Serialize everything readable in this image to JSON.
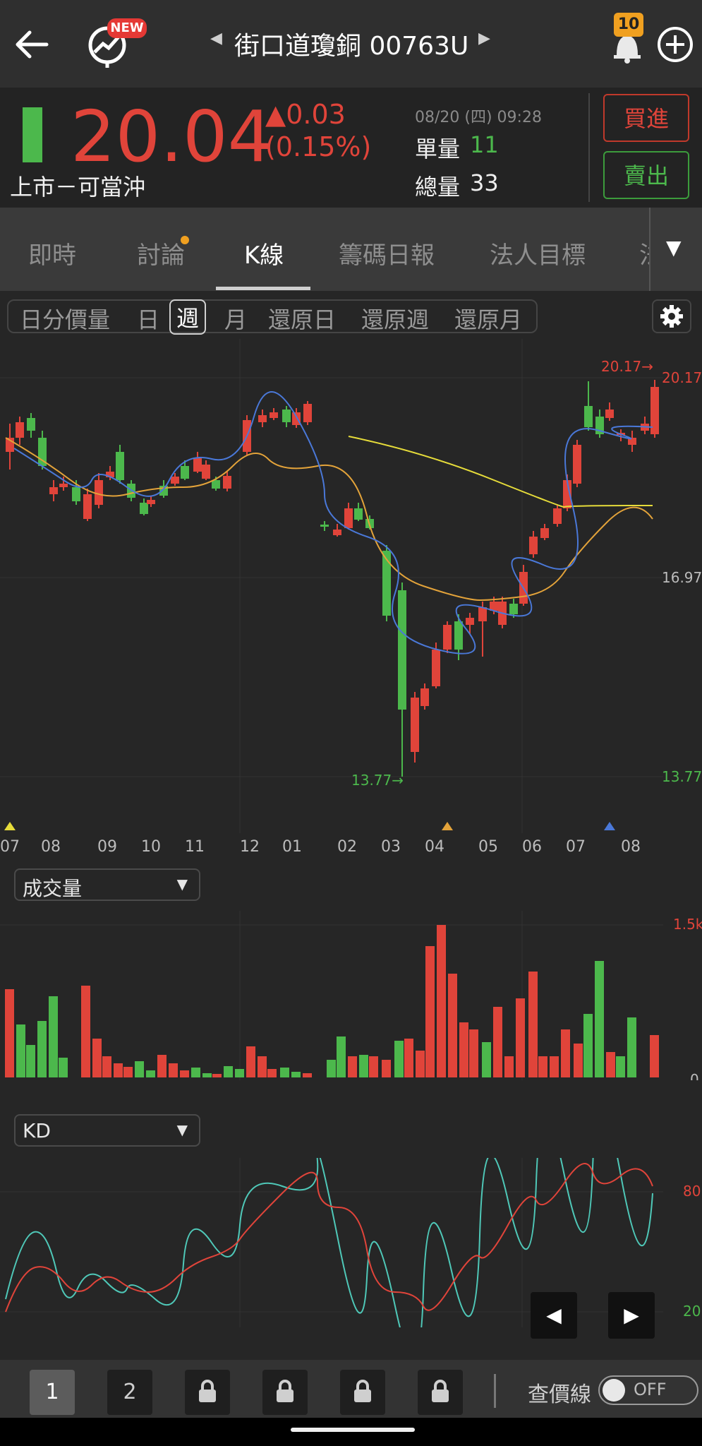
{
  "header": {
    "title": "街口道瓊銅 00763U",
    "new_badge": "NEW",
    "alert_count": "10"
  },
  "quote": {
    "price": "20.04",
    "change": "▲0.03",
    "change_pct": "(0.15%)",
    "datetime": "08/20 (四) 09:28",
    "unit_vol_label": "單量",
    "unit_vol": "11",
    "total_vol_label": "總量",
    "total_vol": "33",
    "market_label": "上市－可當沖",
    "buy_label": "買進",
    "sell_label": "賣出",
    "up_color": "#e0443a",
    "down_color": "#4cb84c"
  },
  "tabs": [
    {
      "label": "即時"
    },
    {
      "label": "討論"
    },
    {
      "label": "K線"
    },
    {
      "label": "籌碼日報"
    },
    {
      "label": "法人目標"
    },
    {
      "label": "法"
    }
  ],
  "subtabs": [
    "日分價量",
    "日",
    "週",
    "月",
    "還原日",
    "還原週",
    "還原月"
  ],
  "price_chart": {
    "y_labels": [
      "20.17",
      "16.97",
      "13.77"
    ],
    "high_marker": "20.17→",
    "low_marker": "13.77→",
    "x_labels": [
      "07",
      "08",
      "09",
      "10",
      "11",
      "12",
      "01",
      "02",
      "03",
      "04",
      "05",
      "06",
      "07",
      "08"
    ]
  },
  "chart_data": {
    "type": "candlestick",
    "ylim": [
      13.77,
      20.17
    ],
    "ma_colors": {
      "ma5": "#4a78d8",
      "ma10": "#e3a33a",
      "ma20": "#e6dc3a"
    }
  },
  "volume_panel": {
    "dropdown_label": "成交量",
    "y_top": "1.5k",
    "y_bottom": "0"
  },
  "kd_panel": {
    "dropdown_label": "KD",
    "y_top": "80",
    "y_bottom": "20"
  },
  "bottom": {
    "pages": [
      "1",
      "2"
    ],
    "price_line_label": "查價線",
    "toggle_label": "OFF"
  }
}
